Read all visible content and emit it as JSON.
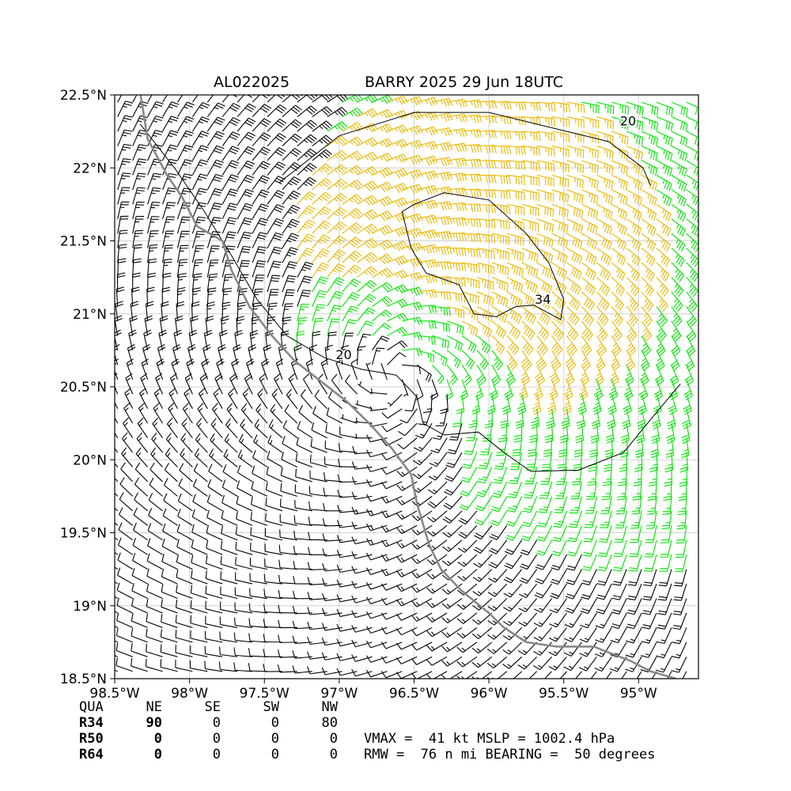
{
  "header": {
    "storm_id": "AL022025",
    "storm_title": "BARRY 2025 29 Jun 18UTC"
  },
  "chart_data": {
    "type": "wind-barb map",
    "xlim": [
      -98.5,
      -94.6
    ],
    "ylim": [
      18.5,
      22.5
    ],
    "x_ticks": [
      {
        "v": -98.5,
        "label": "98.5°W"
      },
      {
        "v": -98.0,
        "label": "98°W"
      },
      {
        "v": -97.5,
        "label": "97.5°W"
      },
      {
        "v": -97.0,
        "label": "97°W"
      },
      {
        "v": -96.5,
        "label": "96.5°W"
      },
      {
        "v": -96.0,
        "label": "96°W"
      },
      {
        "v": -95.5,
        "label": "95.5°W"
      },
      {
        "v": -95.0,
        "label": "95°W"
      }
    ],
    "y_ticks": [
      {
        "v": 22.5,
        "label": "22.5°N"
      },
      {
        "v": 22.0,
        "label": "22°N"
      },
      {
        "v": 21.5,
        "label": "21.5°N"
      },
      {
        "v": 21.0,
        "label": "21°N"
      },
      {
        "v": 20.5,
        "label": "20.5°N"
      },
      {
        "v": 20.0,
        "label": "20°N"
      },
      {
        "v": 19.5,
        "label": "19.5°N"
      },
      {
        "v": 19.0,
        "label": "19°N"
      },
      {
        "v": 18.5,
        "label": "18.5°N"
      }
    ],
    "grid": true,
    "center": {
      "lon": -96.63,
      "lat": 20.55
    },
    "contour_labels": [
      {
        "text": "20",
        "lon": -96.97,
        "lat": 20.69
      },
      {
        "text": "34",
        "lon": -95.64,
        "lat": 21.07
      },
      {
        "text": "20",
        "lon": -95.07,
        "lat": 22.29
      }
    ],
    "contour_20": [
      [
        -98.33,
        22.3
      ],
      [
        -98.1,
        22.0
      ],
      [
        -97.9,
        21.7
      ],
      [
        -97.72,
        21.4
      ],
      [
        -97.55,
        21.1
      ],
      [
        -97.35,
        20.85
      ],
      [
        -97.1,
        20.7
      ],
      [
        -96.85,
        20.62
      ],
      [
        -96.62,
        20.58
      ],
      [
        -96.48,
        20.43
      ],
      [
        -96.44,
        20.25
      ],
      [
        -96.3,
        20.17
      ],
      [
        -96.07,
        20.19
      ],
      [
        -95.9,
        20.05
      ],
      [
        -95.72,
        19.92
      ],
      [
        -95.4,
        19.93
      ],
      [
        -95.1,
        20.05
      ],
      [
        -94.9,
        20.3
      ],
      [
        -94.72,
        20.52
      ]
    ],
    "contour_20_ne": [
      [
        -97.4,
        21.9
      ],
      [
        -97.0,
        22.22
      ],
      [
        -96.5,
        22.38
      ],
      [
        -96.0,
        22.38
      ],
      [
        -95.6,
        22.28
      ],
      [
        -95.2,
        22.18
      ],
      [
        -94.97,
        22.0
      ],
      [
        -94.92,
        21.88
      ]
    ],
    "contour_34": [
      [
        -96.5,
        21.75
      ],
      [
        -96.3,
        21.83
      ],
      [
        -96.0,
        21.78
      ],
      [
        -95.75,
        21.55
      ],
      [
        -95.6,
        21.35
      ],
      [
        -95.5,
        21.1
      ],
      [
        -95.52,
        20.96
      ],
      [
        -95.7,
        21.06
      ],
      [
        -95.82,
        21.05
      ],
      [
        -95.95,
        20.98
      ],
      [
        -96.1,
        21.0
      ],
      [
        -96.2,
        21.2
      ],
      [
        -96.42,
        21.28
      ],
      [
        -96.52,
        21.45
      ],
      [
        -96.58,
        21.7
      ],
      [
        -96.5,
        21.75
      ]
    ],
    "coastline": [
      [
        -98.33,
        22.52
      ],
      [
        -98.28,
        22.2
      ],
      [
        -98.15,
        21.95
      ],
      [
        -98.05,
        21.8
      ],
      [
        -97.95,
        21.6
      ],
      [
        -97.78,
        21.5
      ],
      [
        -97.72,
        21.3
      ],
      [
        -97.6,
        21.05
      ],
      [
        -97.45,
        20.85
      ],
      [
        -97.3,
        20.68
      ],
      [
        -97.1,
        20.52
      ],
      [
        -96.95,
        20.4
      ],
      [
        -96.8,
        20.25
      ],
      [
        -96.65,
        20.08
      ],
      [
        -96.52,
        19.9
      ],
      [
        -96.48,
        19.7
      ],
      [
        -96.4,
        19.42
      ],
      [
        -96.32,
        19.25
      ],
      [
        -96.18,
        19.1
      ],
      [
        -96.0,
        18.95
      ],
      [
        -95.9,
        18.85
      ],
      [
        -95.75,
        18.75
      ],
      [
        -95.55,
        18.72
      ],
      [
        -95.3,
        18.72
      ],
      [
        -95.05,
        18.62
      ],
      [
        -94.92,
        18.55
      ],
      [
        -94.75,
        18.5
      ]
    ],
    "wind_r34_kt": 34,
    "wind_r50_kt": 50
  },
  "radii": {
    "columns": [
      "QUA",
      "NE",
      "SE",
      "SW",
      "NW"
    ],
    "rows": [
      {
        "name": "R34",
        "values": [
          "90",
          "0",
          "0",
          "80"
        ]
      },
      {
        "name": "R50",
        "values": [
          "0",
          "0",
          "0",
          "0"
        ]
      },
      {
        "name": "R64",
        "values": [
          "0",
          "0",
          "0",
          "0"
        ]
      }
    ]
  },
  "stats": {
    "line1": "VMAX =  41 kt MSLP = 1002.4 hPa",
    "line2": "RMW =  76 n mi BEARING =  50 degrees"
  },
  "colors": {
    "black_barb": "#000000",
    "green_barb": "#00e400",
    "gold_barb": "#e8b800",
    "coast": "#888888",
    "grid": "#d0d0d0"
  }
}
